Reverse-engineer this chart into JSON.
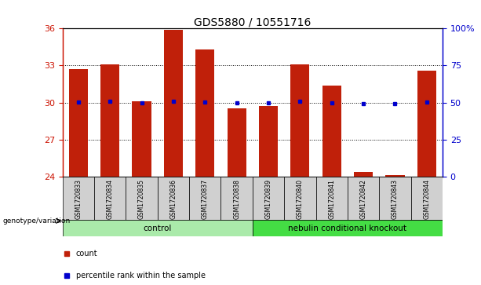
{
  "title": "GDS5880 / 10551716",
  "samples": [
    "GSM1720833",
    "GSM1720834",
    "GSM1720835",
    "GSM1720836",
    "GSM1720837",
    "GSM1720838",
    "GSM1720839",
    "GSM1720840",
    "GSM1720841",
    "GSM1720842",
    "GSM1720843",
    "GSM1720844"
  ],
  "counts": [
    32.7,
    33.1,
    30.1,
    35.9,
    34.3,
    29.55,
    29.7,
    33.1,
    31.4,
    24.4,
    24.1,
    32.6
  ],
  "percentile_ranks": [
    50.5,
    51.0,
    50.0,
    51.0,
    50.5,
    50.0,
    50.0,
    51.0,
    50.0,
    49.2,
    49.2,
    50.5
  ],
  "bar_color": "#C0200A",
  "dot_color": "#0000CC",
  "ylim_left": [
    24,
    36
  ],
  "ylim_right": [
    0,
    100
  ],
  "yticks_left": [
    24,
    27,
    30,
    33,
    36
  ],
  "ytick_labels_left": [
    "24",
    "27",
    "30",
    "33",
    "36"
  ],
  "yticks_right": [
    0,
    25,
    50,
    75,
    100
  ],
  "ytick_labels_right": [
    "0",
    "25",
    "50",
    "75",
    "100%"
  ],
  "control_indices": [
    0,
    1,
    2,
    3,
    4,
    5
  ],
  "knockout_indices": [
    6,
    7,
    8,
    9,
    10,
    11
  ],
  "control_color": "#AAEAAA",
  "knockout_color": "#44DD44",
  "control_label": "control",
  "knockout_label": "nebulin conditional knockout",
  "bar_bottom": 24,
  "left_axis_color": "#CC1100",
  "right_axis_color": "#0000CC",
  "bar_width": 0.6,
  "cell_color": "#D0D0D0"
}
